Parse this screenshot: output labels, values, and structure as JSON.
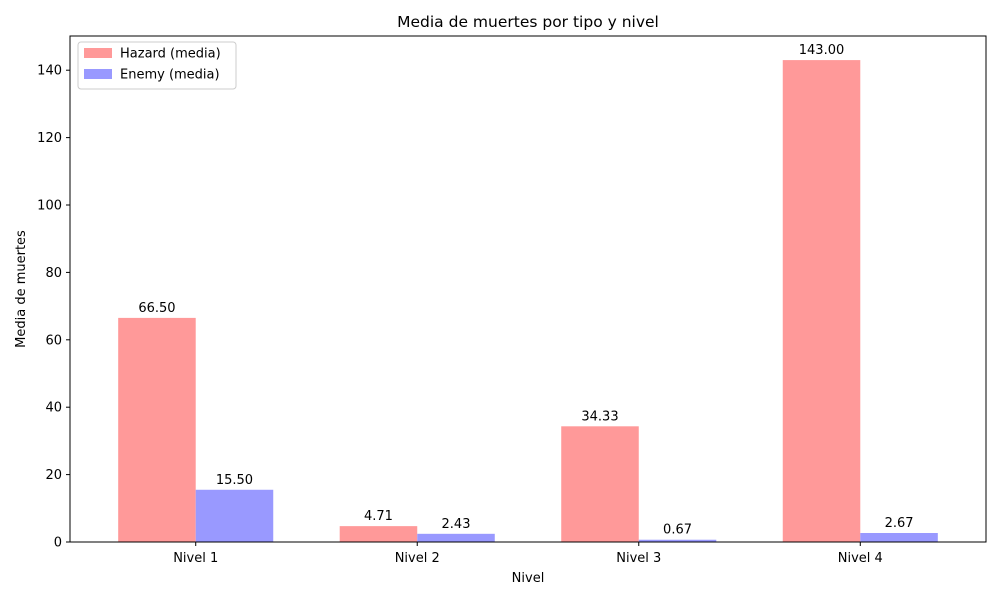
{
  "chart_data": {
    "type": "bar",
    "title": "Media de muertes por tipo y nivel",
    "xlabel": "Nivel",
    "ylabel": "Media de muertes",
    "categories": [
      "Nivel 1",
      "Nivel 2",
      "Nivel 3",
      "Nivel 4"
    ],
    "series": [
      {
        "name": "Hazard (media)",
        "values": [
          66.5,
          4.71,
          34.33,
          143.0
        ],
        "labels": [
          "66.50",
          "4.71",
          "34.33",
          "143.00"
        ],
        "color": "#ff9999"
      },
      {
        "name": "Enemy (media)",
        "values": [
          15.5,
          2.43,
          0.67,
          2.67
        ],
        "labels": [
          "15.50",
          "2.43",
          "0.67",
          "2.67"
        ],
        "color": "#9999ff"
      }
    ],
    "ylim": [
      0,
      150.15
    ],
    "yticks": [
      0,
      20,
      40,
      60,
      80,
      100,
      120,
      140
    ],
    "legend_position": "top-left",
    "grid": false
  }
}
